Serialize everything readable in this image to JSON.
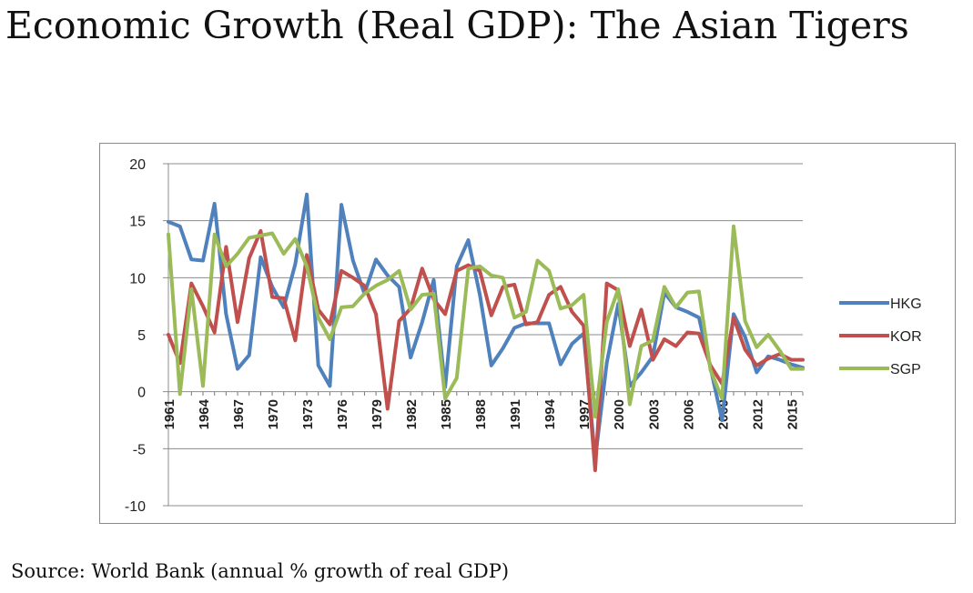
{
  "title": "Economic Growth (Real GDP): The Asian Tigers",
  "source": "Source: World Bank (annual % growth of real GDP)",
  "chart_data": {
    "type": "line",
    "title": "",
    "xlabel": "",
    "ylabel": "",
    "ylim": [
      -10,
      20
    ],
    "yticks": [
      -10,
      -5,
      0,
      5,
      10,
      15,
      20
    ],
    "xlim": [
      1961,
      2016
    ],
    "xticks": [
      1961,
      1964,
      1967,
      1970,
      1973,
      1976,
      1979,
      1982,
      1985,
      1988,
      1991,
      1994,
      1997,
      2000,
      2003,
      2006,
      2009,
      2012,
      2015
    ],
    "grid": true,
    "legend": "right",
    "series": [
      {
        "name": "HKG",
        "color": "#4f81bd",
        "x": [
          1961,
          1962,
          1963,
          1964,
          1965,
          1966,
          1967,
          1968,
          1969,
          1970,
          1971,
          1972,
          1973,
          1974,
          1975,
          1976,
          1977,
          1978,
          1979,
          1980,
          1981,
          1982,
          1983,
          1984,
          1985,
          1986,
          1987,
          1988,
          1989,
          1990,
          1991,
          1992,
          1993,
          1994,
          1995,
          1996,
          1997,
          1998,
          1999,
          2000,
          2001,
          2002,
          2003,
          2004,
          2005,
          2006,
          2007,
          2008,
          2009,
          2010,
          2011,
          2012,
          2013,
          2014,
          2015,
          2016
        ],
        "values": [
          14.9,
          14.5,
          11.6,
          11.5,
          16.5,
          6.8,
          2.0,
          3.2,
          11.8,
          9.2,
          7.4,
          11.2,
          17.3,
          2.3,
          0.5,
          16.4,
          11.5,
          8.6,
          11.6,
          10.2,
          9.2,
          3.0,
          6.1,
          9.8,
          0.4,
          11.0,
          13.3,
          8.5,
          2.3,
          3.8,
          5.6,
          6.0,
          6.0,
          6.0,
          2.4,
          4.2,
          5.1,
          -5.9,
          2.5,
          7.7,
          0.5,
          1.7,
          3.1,
          8.7,
          7.4,
          7.0,
          6.5,
          2.1,
          -2.5,
          6.8,
          4.8,
          1.7,
          3.1,
          2.8,
          2.4,
          2.1
        ]
      },
      {
        "name": "KOR",
        "color": "#c0504d",
        "x": [
          1961,
          1962,
          1963,
          1964,
          1965,
          1966,
          1967,
          1968,
          1969,
          1970,
          1971,
          1972,
          1973,
          1974,
          1975,
          1976,
          1977,
          1978,
          1979,
          1980,
          1981,
          1982,
          1983,
          1984,
          1985,
          1986,
          1987,
          1988,
          1989,
          1990,
          1991,
          1992,
          1993,
          1994,
          1995,
          1996,
          1997,
          1998,
          1999,
          2000,
          2001,
          2002,
          2003,
          2004,
          2005,
          2006,
          2007,
          2008,
          2009,
          2010,
          2011,
          2012,
          2013,
          2014,
          2015,
          2016
        ],
        "values": [
          5.0,
          2.5,
          9.5,
          7.5,
          5.2,
          12.7,
          6.1,
          11.7,
          14.1,
          8.3,
          8.2,
          4.5,
          12.0,
          7.2,
          5.9,
          10.6,
          10.0,
          9.3,
          6.8,
          -1.5,
          6.2,
          7.3,
          10.8,
          8.1,
          6.8,
          10.6,
          11.1,
          10.6,
          6.7,
          9.2,
          9.4,
          5.9,
          6.1,
          8.5,
          9.2,
          7.0,
          5.8,
          -6.9,
          9.5,
          8.9,
          4.0,
          7.2,
          2.8,
          4.6,
          4.0,
          5.2,
          5.1,
          2.3,
          0.7,
          6.5,
          3.7,
          2.3,
          2.9,
          3.3,
          2.8,
          2.8
        ]
      },
      {
        "name": "SGP",
        "color": "#9bbb59",
        "x": [
          1961,
          1962,
          1963,
          1964,
          1965,
          1966,
          1967,
          1968,
          1969,
          1970,
          1971,
          1972,
          1973,
          1974,
          1975,
          1976,
          1977,
          1978,
          1979,
          1980,
          1981,
          1982,
          1983,
          1984,
          1985,
          1986,
          1987,
          1988,
          1989,
          1990,
          1991,
          1992,
          1993,
          1994,
          1995,
          1996,
          1997,
          1998,
          1999,
          2000,
          2001,
          2002,
          2003,
          2004,
          2005,
          2006,
          2007,
          2008,
          2009,
          2010,
          2011,
          2012,
          2013,
          2014,
          2015,
          2016
        ],
        "values": [
          13.8,
          -0.2,
          9.0,
          0.5,
          13.8,
          11.0,
          12.1,
          13.5,
          13.7,
          13.9,
          12.1,
          13.4,
          11.0,
          6.5,
          4.6,
          7.4,
          7.5,
          8.6,
          9.3,
          9.8,
          10.6,
          7.2,
          8.5,
          8.6,
          -0.6,
          1.2,
          10.8,
          11.0,
          10.2,
          10.0,
          6.5,
          7.0,
          11.5,
          10.6,
          7.3,
          7.6,
          8.5,
          -2.2,
          6.1,
          9.0,
          -1.1,
          4.0,
          4.5,
          9.2,
          7.4,
          8.7,
          8.8,
          1.9,
          -0.6,
          14.5,
          6.2,
          3.9,
          5.0,
          3.6,
          2.0,
          2.0
        ]
      }
    ]
  }
}
